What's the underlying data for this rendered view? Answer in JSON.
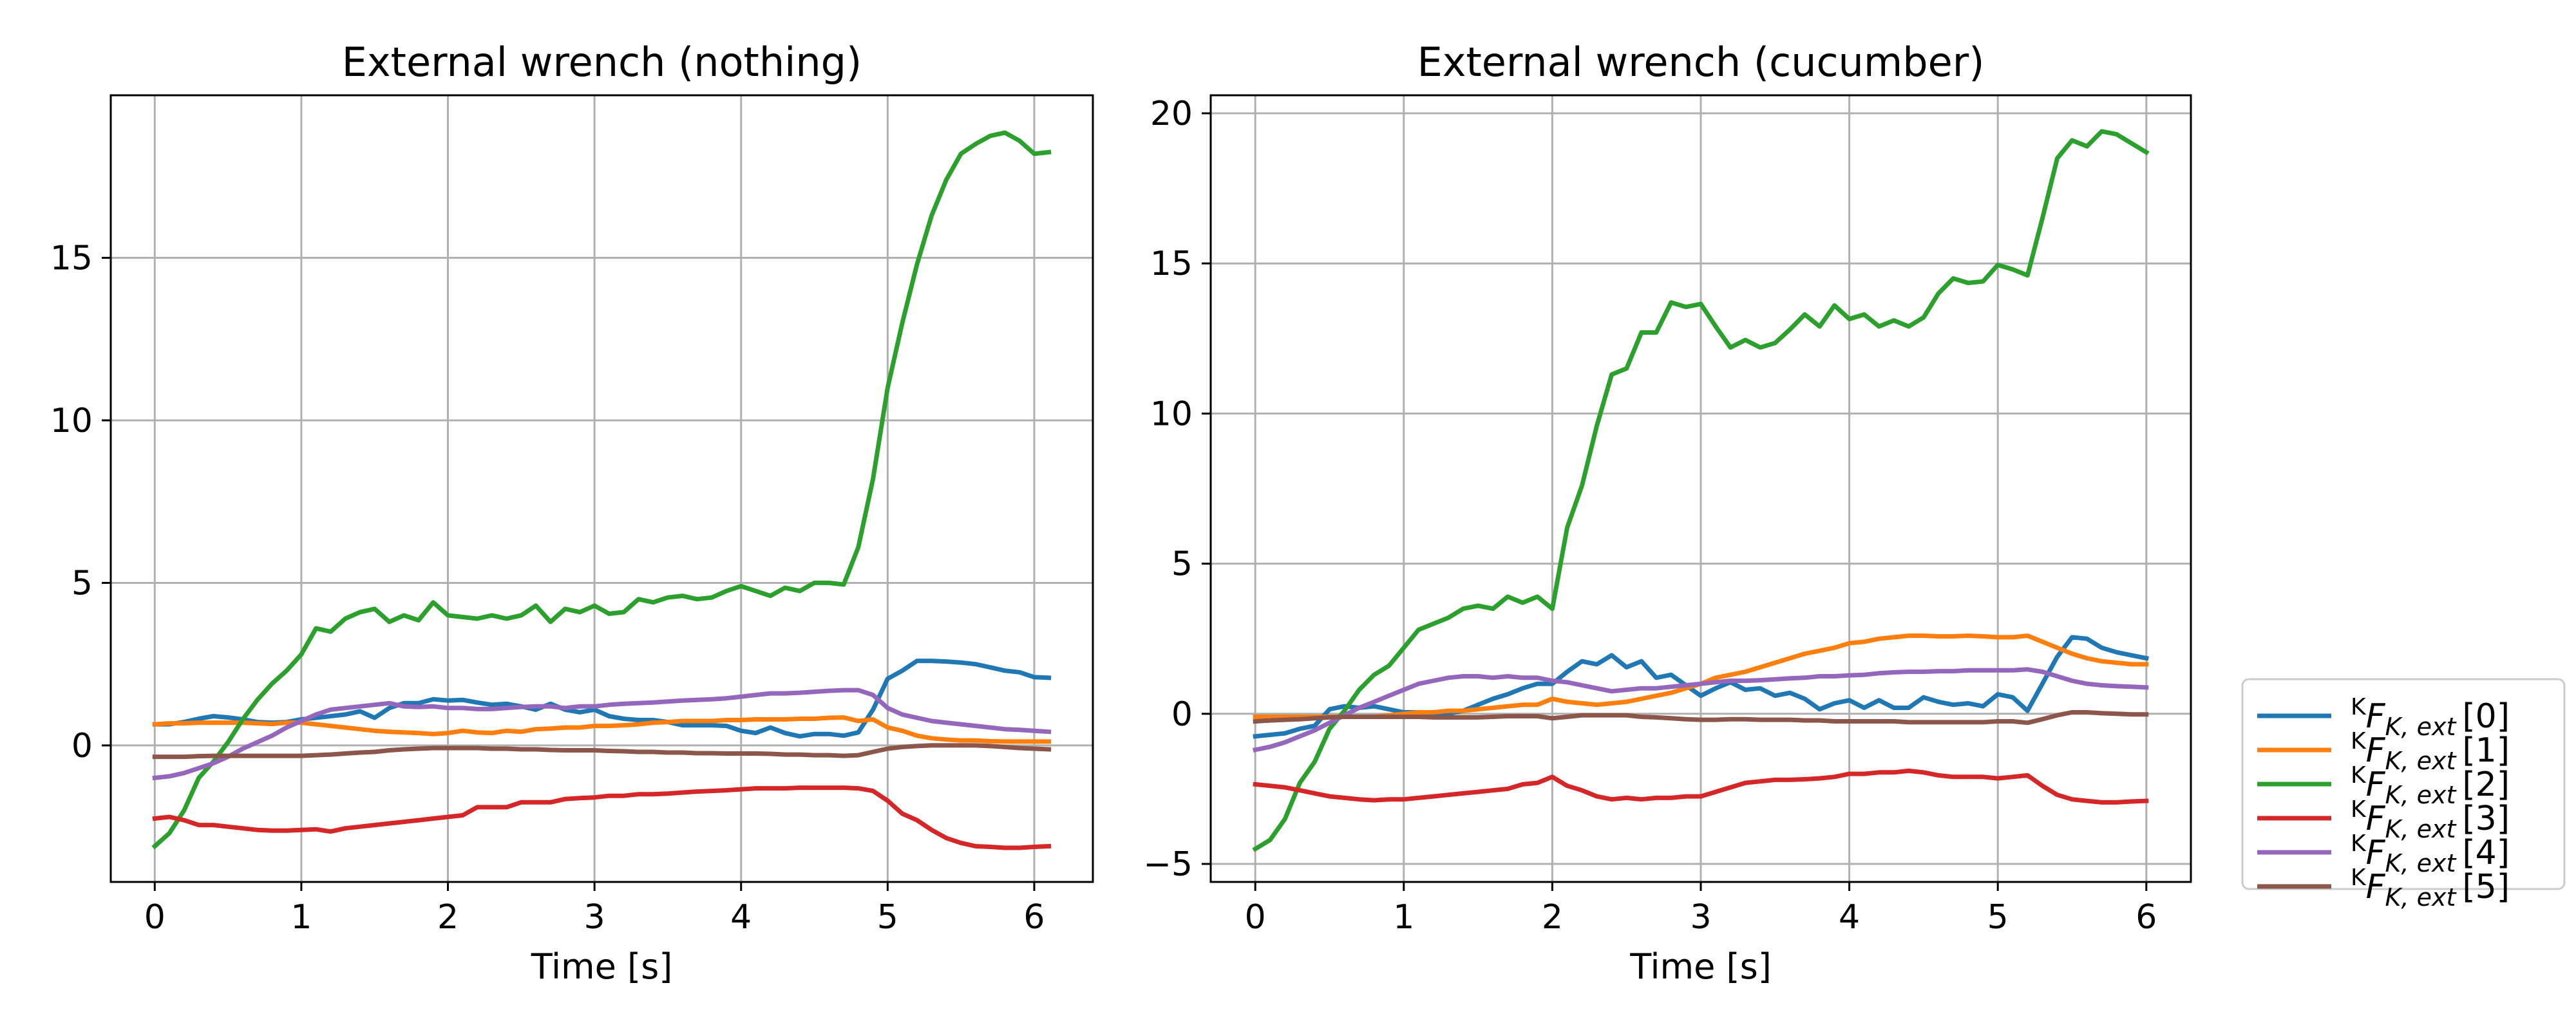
{
  "chart_data": [
    {
      "type": "line",
      "title": "External wrench (nothing)",
      "xlabel": "Time [s]",
      "ylabel": "",
      "xlim": [
        -0.3,
        6.4
      ],
      "ylim": [
        -4.2,
        20.0
      ],
      "xticks": [
        0,
        1,
        2,
        3,
        4,
        5,
        6
      ],
      "yticks": [
        0,
        5,
        10,
        15
      ],
      "grid": true,
      "x": [
        0.0,
        0.1,
        0.2,
        0.3,
        0.4,
        0.5,
        0.6,
        0.7,
        0.8,
        0.9,
        1.0,
        1.1,
        1.2,
        1.3,
        1.4,
        1.5,
        1.6,
        1.7,
        1.8,
        1.9,
        2.0,
        2.1,
        2.2,
        2.3,
        2.4,
        2.5,
        2.6,
        2.7,
        2.8,
        2.9,
        3.0,
        3.1,
        3.2,
        3.3,
        3.4,
        3.5,
        3.6,
        3.7,
        3.8,
        3.9,
        4.0,
        4.1,
        4.2,
        4.3,
        4.4,
        4.5,
        4.6,
        4.7,
        4.8,
        4.9,
        5.0,
        5.1,
        5.2,
        5.3,
        5.4,
        5.5,
        5.6,
        5.7,
        5.8,
        5.9,
        6.0,
        6.1
      ],
      "series": [
        {
          "name": "[0]",
          "color": "#1f77b4",
          "values": [
            0.65,
            0.65,
            0.72,
            0.82,
            0.9,
            0.86,
            0.8,
            0.72,
            0.7,
            0.72,
            0.8,
            0.85,
            0.9,
            0.95,
            1.05,
            0.85,
            1.15,
            1.3,
            1.3,
            1.42,
            1.38,
            1.4,
            1.32,
            1.25,
            1.28,
            1.2,
            1.1,
            1.28,
            1.1,
            1.02,
            1.1,
            0.9,
            0.82,
            0.78,
            0.78,
            0.72,
            0.62,
            0.62,
            0.62,
            0.6,
            0.45,
            0.38,
            0.55,
            0.38,
            0.28,
            0.35,
            0.35,
            0.3,
            0.4,
            1.1,
            2.05,
            2.3,
            2.6,
            2.6,
            2.58,
            2.55,
            2.5,
            2.4,
            2.3,
            2.25,
            2.1,
            2.08
          ]
        },
        {
          "name": "[1]",
          "color": "#ff7f0e",
          "values": [
            0.65,
            0.68,
            0.68,
            0.7,
            0.7,
            0.7,
            0.7,
            0.68,
            0.66,
            0.7,
            0.7,
            0.65,
            0.6,
            0.55,
            0.5,
            0.45,
            0.42,
            0.4,
            0.38,
            0.35,
            0.38,
            0.45,
            0.4,
            0.38,
            0.45,
            0.42,
            0.5,
            0.52,
            0.55,
            0.55,
            0.6,
            0.6,
            0.62,
            0.65,
            0.7,
            0.72,
            0.75,
            0.75,
            0.75,
            0.78,
            0.78,
            0.8,
            0.8,
            0.8,
            0.82,
            0.82,
            0.85,
            0.86,
            0.75,
            0.8,
            0.55,
            0.45,
            0.3,
            0.22,
            0.18,
            0.15,
            0.15,
            0.13,
            0.12,
            0.12,
            0.12,
            0.12
          ]
        },
        {
          "name": "[2]",
          "color": "#2ca02c",
          "values": [
            -3.1,
            -2.7,
            -2.0,
            -1.0,
            -0.5,
            0.1,
            0.8,
            1.4,
            1.9,
            2.3,
            2.8,
            3.6,
            3.5,
            3.9,
            4.1,
            4.2,
            3.8,
            4.0,
            3.85,
            4.4,
            4.0,
            3.95,
            3.9,
            4.0,
            3.9,
            4.0,
            4.3,
            3.8,
            4.2,
            4.1,
            4.3,
            4.05,
            4.1,
            4.5,
            4.4,
            4.55,
            4.6,
            4.5,
            4.55,
            4.75,
            4.9,
            4.75,
            4.6,
            4.85,
            4.75,
            5.0,
            5.0,
            4.95,
            6.1,
            8.2,
            11.0,
            13.0,
            14.8,
            16.3,
            17.4,
            18.2,
            18.5,
            18.75,
            18.85,
            18.6,
            18.2,
            18.25
          ]
        },
        {
          "name": "[3]",
          "color": "#d62728",
          "values": [
            -2.25,
            -2.2,
            -2.3,
            -2.45,
            -2.45,
            -2.5,
            -2.55,
            -2.6,
            -2.62,
            -2.62,
            -2.6,
            -2.58,
            -2.65,
            -2.55,
            -2.5,
            -2.45,
            -2.4,
            -2.35,
            -2.3,
            -2.25,
            -2.2,
            -2.15,
            -1.9,
            -1.9,
            -1.9,
            -1.75,
            -1.75,
            -1.75,
            -1.65,
            -1.62,
            -1.6,
            -1.55,
            -1.55,
            -1.5,
            -1.5,
            -1.48,
            -1.45,
            -1.42,
            -1.4,
            -1.38,
            -1.35,
            -1.32,
            -1.32,
            -1.32,
            -1.3,
            -1.3,
            -1.3,
            -1.3,
            -1.32,
            -1.4,
            -1.7,
            -2.1,
            -2.3,
            -2.6,
            -2.85,
            -3.0,
            -3.1,
            -3.12,
            -3.15,
            -3.15,
            -3.12,
            -3.1
          ]
        },
        {
          "name": "[4]",
          "color": "#9467bd",
          "values": [
            -1.0,
            -0.95,
            -0.85,
            -0.7,
            -0.55,
            -0.35,
            -0.1,
            0.1,
            0.3,
            0.55,
            0.75,
            0.95,
            1.1,
            1.15,
            1.2,
            1.25,
            1.3,
            1.2,
            1.18,
            1.2,
            1.15,
            1.15,
            1.12,
            1.12,
            1.15,
            1.18,
            1.2,
            1.2,
            1.15,
            1.2,
            1.2,
            1.25,
            1.28,
            1.3,
            1.32,
            1.35,
            1.38,
            1.4,
            1.42,
            1.45,
            1.5,
            1.55,
            1.6,
            1.6,
            1.62,
            1.65,
            1.68,
            1.7,
            1.7,
            1.55,
            1.15,
            0.95,
            0.85,
            0.75,
            0.7,
            0.65,
            0.6,
            0.55,
            0.5,
            0.48,
            0.45,
            0.42
          ]
        },
        {
          "name": "[5]",
          "color": "#8c564b",
          "values": [
            -0.35,
            -0.35,
            -0.35,
            -0.33,
            -0.32,
            -0.32,
            -0.32,
            -0.32,
            -0.32,
            -0.32,
            -0.32,
            -0.3,
            -0.28,
            -0.25,
            -0.22,
            -0.2,
            -0.15,
            -0.12,
            -0.1,
            -0.08,
            -0.08,
            -0.08,
            -0.08,
            -0.1,
            -0.1,
            -0.12,
            -0.12,
            -0.14,
            -0.15,
            -0.15,
            -0.15,
            -0.17,
            -0.18,
            -0.2,
            -0.2,
            -0.22,
            -0.22,
            -0.24,
            -0.24,
            -0.25,
            -0.25,
            -0.25,
            -0.26,
            -0.28,
            -0.28,
            -0.3,
            -0.3,
            -0.32,
            -0.3,
            -0.2,
            -0.1,
            -0.05,
            -0.02,
            0.0,
            0.0,
            0.0,
            0.0,
            -0.02,
            -0.05,
            -0.08,
            -0.1,
            -0.12
          ]
        }
      ]
    },
    {
      "type": "line",
      "title": "External wrench (cucumber)",
      "xlabel": "Time [s]",
      "ylabel": "",
      "xlim": [
        -0.3,
        6.3
      ],
      "ylim": [
        -5.6,
        20.6
      ],
      "xticks": [
        0,
        1,
        2,
        3,
        4,
        5,
        6
      ],
      "yticks": [
        -5,
        0,
        5,
        10,
        15,
        20
      ],
      "grid": true,
      "x": [
        0.0,
        0.1,
        0.2,
        0.3,
        0.4,
        0.5,
        0.6,
        0.7,
        0.8,
        0.9,
        1.0,
        1.1,
        1.2,
        1.3,
        1.4,
        1.5,
        1.6,
        1.7,
        1.8,
        1.9,
        2.0,
        2.1,
        2.2,
        2.3,
        2.4,
        2.5,
        2.6,
        2.7,
        2.8,
        2.9,
        3.0,
        3.1,
        3.2,
        3.3,
        3.4,
        3.5,
        3.6,
        3.7,
        3.8,
        3.9,
        4.0,
        4.1,
        4.2,
        4.3,
        4.4,
        4.5,
        4.6,
        4.7,
        4.8,
        4.9,
        5.0,
        5.1,
        5.2,
        5.3,
        5.4,
        5.5,
        5.6,
        5.7,
        5.8,
        5.9,
        6.0
      ],
      "series": [
        {
          "name": "[0]",
          "color": "#1f77b4",
          "values": [
            -0.75,
            -0.7,
            -0.65,
            -0.5,
            -0.4,
            0.15,
            0.25,
            0.2,
            0.25,
            0.15,
            0.05,
            0.05,
            0.0,
            0.0,
            0.1,
            0.3,
            0.5,
            0.65,
            0.85,
            1.0,
            1.0,
            1.4,
            1.75,
            1.65,
            1.95,
            1.55,
            1.75,
            1.2,
            1.3,
            0.95,
            0.6,
            0.85,
            1.05,
            0.8,
            0.85,
            0.6,
            0.7,
            0.5,
            0.15,
            0.35,
            0.45,
            0.2,
            0.45,
            0.2,
            0.2,
            0.55,
            0.4,
            0.3,
            0.35,
            0.25,
            0.65,
            0.55,
            0.1,
            1.0,
            1.9,
            2.55,
            2.5,
            2.2,
            2.05,
            1.95,
            1.85
          ]
        },
        {
          "name": "[1]",
          "color": "#ff7f0e",
          "values": [
            -0.1,
            -0.1,
            -0.1,
            -0.1,
            -0.1,
            -0.1,
            -0.1,
            -0.1,
            -0.1,
            -0.05,
            0.0,
            0.05,
            0.05,
            0.1,
            0.1,
            0.15,
            0.2,
            0.25,
            0.3,
            0.3,
            0.5,
            0.4,
            0.35,
            0.3,
            0.35,
            0.4,
            0.5,
            0.6,
            0.7,
            0.85,
            1.0,
            1.2,
            1.3,
            1.4,
            1.55,
            1.7,
            1.85,
            2.0,
            2.1,
            2.2,
            2.35,
            2.4,
            2.5,
            2.55,
            2.6,
            2.6,
            2.58,
            2.58,
            2.6,
            2.58,
            2.55,
            2.55,
            2.6,
            2.4,
            2.2,
            2.0,
            1.85,
            1.75,
            1.7,
            1.65,
            1.65
          ]
        },
        {
          "name": "[2]",
          "color": "#2ca02c",
          "values": [
            -4.5,
            -4.2,
            -3.5,
            -2.3,
            -1.6,
            -0.5,
            0.1,
            0.8,
            1.3,
            1.6,
            2.2,
            2.8,
            3.0,
            3.2,
            3.5,
            3.6,
            3.5,
            3.9,
            3.7,
            3.9,
            3.5,
            6.2,
            7.6,
            9.6,
            11.3,
            11.5,
            12.7,
            12.7,
            13.7,
            13.55,
            13.65,
            12.9,
            12.2,
            12.45,
            12.2,
            12.35,
            12.8,
            13.3,
            12.9,
            13.6,
            13.15,
            13.3,
            12.9,
            13.1,
            12.9,
            13.2,
            14.0,
            14.5,
            14.35,
            14.4,
            14.95,
            14.8,
            14.6,
            16.5,
            18.5,
            19.1,
            18.9,
            19.4,
            19.3,
            19.0,
            18.7
          ]
        },
        {
          "name": "[3]",
          "color": "#d62728",
          "values": [
            -2.35,
            -2.4,
            -2.45,
            -2.55,
            -2.65,
            -2.75,
            -2.8,
            -2.85,
            -2.88,
            -2.85,
            -2.85,
            -2.8,
            -2.75,
            -2.7,
            -2.65,
            -2.6,
            -2.55,
            -2.5,
            -2.35,
            -2.3,
            -2.1,
            -2.4,
            -2.55,
            -2.75,
            -2.85,
            -2.8,
            -2.85,
            -2.8,
            -2.8,
            -2.75,
            -2.75,
            -2.6,
            -2.45,
            -2.3,
            -2.25,
            -2.2,
            -2.2,
            -2.18,
            -2.15,
            -2.1,
            -2.0,
            -2.0,
            -1.95,
            -1.95,
            -1.9,
            -1.95,
            -2.05,
            -2.1,
            -2.1,
            -2.1,
            -2.15,
            -2.1,
            -2.05,
            -2.4,
            -2.7,
            -2.85,
            -2.9,
            -2.95,
            -2.95,
            -2.92,
            -2.9
          ]
        },
        {
          "name": "[4]",
          "color": "#9467bd",
          "values": [
            -1.2,
            -1.1,
            -0.95,
            -0.75,
            -0.55,
            -0.3,
            -0.05,
            0.2,
            0.4,
            0.6,
            0.8,
            1.0,
            1.1,
            1.2,
            1.25,
            1.25,
            1.2,
            1.25,
            1.2,
            1.2,
            1.1,
            1.05,
            0.95,
            0.85,
            0.75,
            0.8,
            0.85,
            0.85,
            0.9,
            0.95,
            1.0,
            1.05,
            1.1,
            1.1,
            1.12,
            1.15,
            1.18,
            1.2,
            1.25,
            1.25,
            1.28,
            1.3,
            1.35,
            1.38,
            1.4,
            1.4,
            1.42,
            1.42,
            1.45,
            1.45,
            1.45,
            1.45,
            1.48,
            1.4,
            1.25,
            1.1,
            1.0,
            0.95,
            0.92,
            0.9,
            0.88
          ]
        },
        {
          "name": "[5]",
          "color": "#8c564b",
          "values": [
            -0.25,
            -0.22,
            -0.2,
            -0.18,
            -0.15,
            -0.12,
            -0.1,
            -0.1,
            -0.1,
            -0.1,
            -0.1,
            -0.1,
            -0.12,
            -0.12,
            -0.12,
            -0.12,
            -0.1,
            -0.08,
            -0.08,
            -0.08,
            -0.15,
            -0.1,
            -0.05,
            -0.05,
            -0.05,
            -0.05,
            -0.1,
            -0.12,
            -0.15,
            -0.18,
            -0.2,
            -0.2,
            -0.18,
            -0.18,
            -0.2,
            -0.2,
            -0.2,
            -0.22,
            -0.22,
            -0.25,
            -0.25,
            -0.25,
            -0.25,
            -0.25,
            -0.28,
            -0.28,
            -0.28,
            -0.28,
            -0.28,
            -0.28,
            -0.25,
            -0.25,
            -0.3,
            -0.18,
            -0.05,
            0.05,
            0.05,
            0.02,
            0.0,
            -0.02,
            -0.02
          ]
        }
      ]
    }
  ],
  "legend": {
    "placement": "right, outside lower",
    "symbol_prefix": "K",
    "symbol_main": "F",
    "symbol_subscript": "K, ext",
    "entries": [
      "[0]",
      "[1]",
      "[2]",
      "[3]",
      "[4]",
      "[5]"
    ],
    "colors": [
      "#1f77b4",
      "#ff7f0e",
      "#2ca02c",
      "#d62728",
      "#9467bd",
      "#8c564b"
    ]
  }
}
